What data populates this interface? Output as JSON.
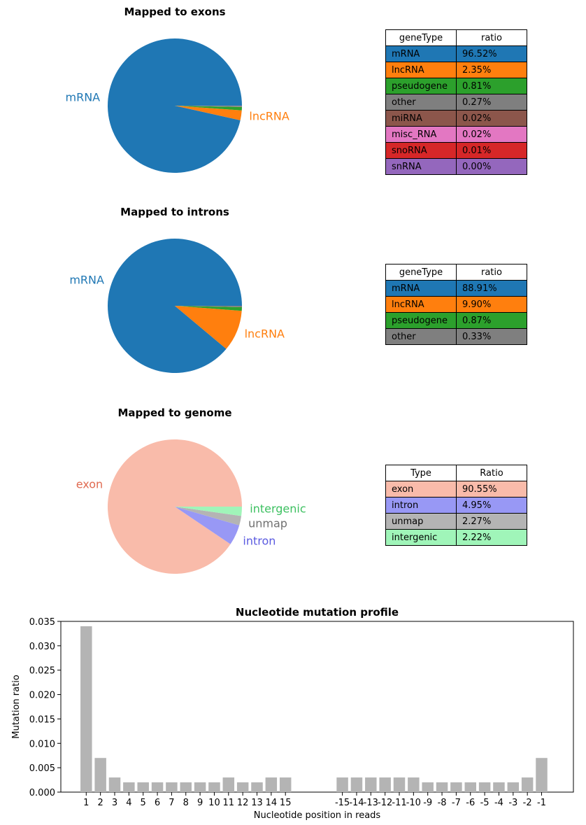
{
  "chart_data": [
    {
      "type": "pie",
      "title": "Mapped to exons",
      "slices": [
        {
          "label": "mRNA",
          "value": 96.52,
          "color": "#1f77b4",
          "show_label": true
        },
        {
          "label": "lncRNA",
          "value": 2.35,
          "color": "#ff7f0e",
          "show_label": true
        },
        {
          "label": "pseudogene",
          "value": 0.81,
          "color": "#2ca02c",
          "show_label": false
        },
        {
          "label": "other",
          "value": 0.27,
          "color": "#7f7f7f",
          "show_label": false
        },
        {
          "label": "miRNA",
          "value": 0.02,
          "color": "#8c564b",
          "show_label": false
        },
        {
          "label": "misc_RNA",
          "value": 0.02,
          "color": "#e377c2",
          "show_label": false
        },
        {
          "label": "snoRNA",
          "value": 0.01,
          "color": "#d62728",
          "show_label": false
        },
        {
          "label": "snRNA",
          "value": 0.0,
          "color": "#9467bd",
          "show_label": false
        }
      ],
      "table": {
        "headers": [
          "geneType",
          "ratio"
        ],
        "rows": [
          {
            "name": "mRNA",
            "ratio": "96.52%",
            "color": "#1f77b4"
          },
          {
            "name": "lncRNA",
            "ratio": "2.35%",
            "color": "#ff7f0e"
          },
          {
            "name": "pseudogene",
            "ratio": "0.81%",
            "color": "#2ca02c"
          },
          {
            "name": "other",
            "ratio": "0.27%",
            "color": "#7f7f7f"
          },
          {
            "name": "miRNA",
            "ratio": "0.02%",
            "color": "#8c564b"
          },
          {
            "name": "misc_RNA",
            "ratio": "0.02%",
            "color": "#e377c2"
          },
          {
            "name": "snoRNA",
            "ratio": "0.01%",
            "color": "#d62728"
          },
          {
            "name": "snRNA",
            "ratio": "0.00%",
            "color": "#9467bd"
          }
        ]
      }
    },
    {
      "type": "pie",
      "title": "Mapped to introns",
      "slices": [
        {
          "label": "mRNA",
          "value": 88.91,
          "color": "#1f77b4",
          "show_label": true
        },
        {
          "label": "lncRNA",
          "value": 9.9,
          "color": "#ff7f0e",
          "show_label": true
        },
        {
          "label": "pseudogene",
          "value": 0.87,
          "color": "#2ca02c",
          "show_label": false
        },
        {
          "label": "other",
          "value": 0.33,
          "color": "#7f7f7f",
          "show_label": false
        }
      ],
      "table": {
        "headers": [
          "geneType",
          "ratio"
        ],
        "rows": [
          {
            "name": "mRNA",
            "ratio": "88.91%",
            "color": "#1f77b4"
          },
          {
            "name": "lncRNA",
            "ratio": "9.90%",
            "color": "#ff7f0e"
          },
          {
            "name": "pseudogene",
            "ratio": "0.87%",
            "color": "#2ca02c"
          },
          {
            "name": "other",
            "ratio": "0.33%",
            "color": "#7f7f7f"
          }
        ]
      }
    },
    {
      "type": "pie",
      "title": "Mapped to genome",
      "slices": [
        {
          "label": "exon",
          "value": 90.55,
          "color": "#f9bbaa",
          "label_color": "#e06a50",
          "show_label": true
        },
        {
          "label": "intron",
          "value": 4.95,
          "color": "#9898f5",
          "label_color": "#5a5ae0",
          "show_label": true
        },
        {
          "label": "unmap",
          "value": 2.27,
          "color": "#b4b4b4",
          "label_color": "#707070",
          "show_label": true
        },
        {
          "label": "intergenic",
          "value": 2.22,
          "color": "#a0f5b9",
          "label_color": "#3cc060",
          "show_label": true
        }
      ],
      "table": {
        "headers": [
          "Type",
          "Ratio"
        ],
        "rows": [
          {
            "name": "exon",
            "ratio": "90.55%",
            "color": "#f9bbaa"
          },
          {
            "name": "intron",
            "ratio": "4.95%",
            "color": "#9898f5"
          },
          {
            "name": "unmap",
            "ratio": "2.27%",
            "color": "#b4b4b4"
          },
          {
            "name": "intergenic",
            "ratio": "2.22%",
            "color": "#a0f5b9"
          }
        ]
      }
    },
    {
      "type": "bar",
      "title": "Nucleotide mutation profile",
      "xlabel": "Nucleotide position in reads",
      "ylabel": "Mutation ratio",
      "ylim": [
        0,
        0.035
      ],
      "yticks": [
        "0.000",
        "0.005",
        "0.010",
        "0.015",
        "0.020",
        "0.025",
        "0.030",
        "0.035"
      ],
      "bar_color": "#b4b4b4",
      "groups": [
        {
          "categories": [
            "1",
            "2",
            "3",
            "4",
            "5",
            "6",
            "7",
            "8",
            "9",
            "10",
            "11",
            "12",
            "13",
            "14",
            "15"
          ],
          "values": [
            0.034,
            0.007,
            0.003,
            0.002,
            0.002,
            0.002,
            0.002,
            0.002,
            0.002,
            0.002,
            0.003,
            0.002,
            0.002,
            0.003,
            0.003
          ]
        },
        {
          "categories": [
            "-15",
            "-14",
            "-13",
            "-12",
            "-11",
            "-10",
            "-9",
            "-8",
            "-7",
            "-6",
            "-5",
            "-4",
            "-3",
            "-2",
            "-1"
          ],
          "values": [
            0.003,
            0.003,
            0.003,
            0.003,
            0.003,
            0.003,
            0.002,
            0.002,
            0.002,
            0.002,
            0.002,
            0.002,
            0.002,
            0.003,
            0.007
          ]
        }
      ]
    }
  ]
}
